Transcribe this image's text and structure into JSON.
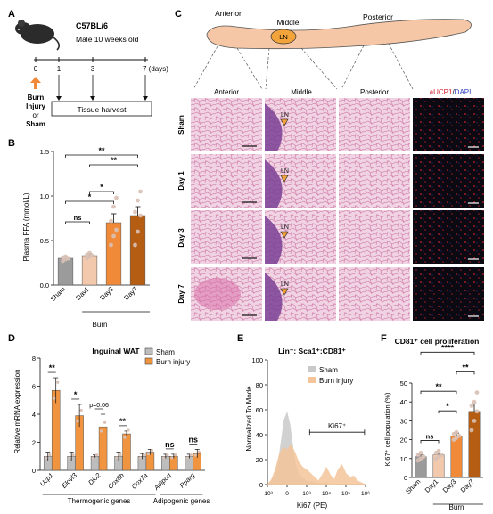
{
  "panel_letters": {
    "A": "A",
    "B": "B",
    "C": "C",
    "D": "D",
    "E": "E",
    "F": "F"
  },
  "panelA": {
    "strain": "C57BL/6",
    "subjects": "Male 10 weeks old",
    "ticks": [
      "0",
      "1",
      "3",
      "7 (days)"
    ],
    "event_lines": [
      "Burn",
      "Injury",
      "or",
      "Sham"
    ],
    "harvest": "Tissue harvest"
  },
  "panelC": {
    "regions": [
      "Anterior",
      "Middle",
      "Posterior"
    ],
    "ln": "LN",
    "cols": [
      "Anterior",
      "Middle",
      "Posterior"
    ],
    "rows": [
      "Sham",
      "Day 1",
      "Day 3",
      "Day 7"
    ],
    "if_label_1": "aUCP1",
    "if_label_sep": "/",
    "if_label_2": "DAPI",
    "colors": {
      "he_pink": "#e4a6c9",
      "he_purple": "#7a3f94",
      "if_bg": "#0b0a12",
      "if_red": "#c8202a"
    }
  },
  "panelB": {
    "chart_data": {
      "type": "bar",
      "ylabel": "Plasma FFA (mmol/L)",
      "ylim": [
        0,
        1.5
      ],
      "yticks": [
        "0.0",
        "0.5",
        "1.0",
        "1.5"
      ],
      "categories": [
        "Sham",
        "Day1",
        "Day3",
        "Day7"
      ],
      "group_label": "Burn",
      "values": [
        0.3,
        0.33,
        0.7,
        0.78
      ],
      "errors": [
        0.02,
        0.02,
        0.1,
        0.1
      ],
      "points": [
        [
          0.27,
          0.29,
          0.3,
          0.31,
          0.32,
          0.3
        ],
        [
          0.3,
          0.32,
          0.33,
          0.34,
          0.36
        ],
        [
          0.45,
          0.55,
          0.62,
          0.72,
          0.88,
          0.98
        ],
        [
          0.45,
          0.6,
          0.78,
          0.82,
          0.95,
          1.05
        ]
      ],
      "colors": [
        "#9b9b9b",
        "#f3c9ad",
        "#f08a38",
        "#b55d12"
      ],
      "significance": [
        {
          "from": 0,
          "to": 2,
          "label": "*"
        },
        {
          "from": 1,
          "to": 2,
          "label": "*"
        },
        {
          "from": 0,
          "to": 1,
          "label": "ns"
        },
        {
          "from": 1,
          "to": 3,
          "label": "**"
        },
        {
          "from": 0,
          "to": 3,
          "label": "**"
        }
      ]
    }
  },
  "panelD": {
    "chart_data": {
      "type": "bar",
      "title": "Inguinal WAT",
      "ylabel": "Relative mRNA expression",
      "ylim": [
        0,
        8
      ],
      "yticks": [
        "0",
        "2",
        "4",
        "6",
        "8"
      ],
      "categories": [
        "Ucp1",
        "Elovl3",
        "Dio2",
        "Cox8b",
        "Cox7a",
        "Adipoq",
        "Pparg"
      ],
      "series": [
        {
          "name": "Sham",
          "values": [
            1.0,
            1.0,
            1.0,
            1.0,
            1.0,
            1.0,
            1.0
          ],
          "errors": [
            0.3,
            0.3,
            0.1,
            0.3,
            0.2,
            0.15,
            0.15
          ],
          "color": "#bdbdbd"
        },
        {
          "name": "Burn injury",
          "values": [
            5.7,
            3.9,
            3.1,
            2.6,
            1.3,
            1.0,
            1.2
          ],
          "errors": [
            0.9,
            0.8,
            0.9,
            0.2,
            0.2,
            0.15,
            0.3
          ],
          "color": "#f0943f"
        }
      ],
      "significance": [
        "**",
        "*",
        "p=0.06",
        "**",
        "",
        "ns",
        "ns"
      ],
      "groups": [
        {
          "label": "Thermogenic genes",
          "from": 0,
          "to": 4
        },
        {
          "label": "Adipogenic genes",
          "from": 5,
          "to": 6
        }
      ]
    }
  },
  "panelE": {
    "chart_data": {
      "type": "area",
      "title": "Lin⁻: Sca1⁺:CD81⁺",
      "xlabel": "Ki67 (PE)",
      "ylabel": "Normalized To Mode",
      "ylim": [
        0,
        100
      ],
      "yticks": [
        "0",
        "20",
        "40",
        "60",
        "80",
        "100"
      ],
      "xticks": [
        "-10³",
        "0",
        "10³",
        "10⁴",
        "10⁵",
        "10⁶"
      ],
      "gate_label": "Ki67⁺",
      "series": [
        {
          "name": "Sham",
          "color": "#c9c9c9",
          "x": [
            0,
            0.2,
            0.4,
            0.55,
            0.7,
            0.85,
            1.0,
            1.15,
            1.3,
            1.45,
            1.6,
            1.8,
            2.0,
            2.3,
            2.6,
            3.0,
            3.5,
            4.0,
            5.0
          ],
          "y": [
            0,
            3,
            8,
            18,
            35,
            52,
            58,
            48,
            30,
            15,
            8,
            5,
            3,
            2,
            1,
            1,
            0,
            0,
            0
          ]
        },
        {
          "name": "Burn injury",
          "color": "#f4c59a",
          "x": [
            0,
            0.2,
            0.4,
            0.6,
            0.8,
            1.0,
            1.2,
            1.4,
            1.6,
            1.8,
            2.0,
            2.2,
            2.4,
            2.6,
            2.8,
            3.0,
            3.2,
            3.4,
            3.6,
            3.8,
            4.0,
            4.2,
            4.4,
            4.6,
            5.0
          ],
          "y": [
            0,
            4,
            12,
            24,
            30,
            28,
            32,
            26,
            18,
            14,
            12,
            9,
            6,
            3,
            8,
            14,
            8,
            4,
            12,
            16,
            9,
            6,
            7,
            3,
            0
          ]
        }
      ]
    }
  },
  "panelF": {
    "chart_data": {
      "type": "bar",
      "title": "CD81⁺ cell proliferation",
      "ylabel": "Ki67⁺ cell population (%)",
      "ylim": [
        0,
        50
      ],
      "yticks": [
        "0",
        "10",
        "20",
        "30",
        "40",
        "50"
      ],
      "categories": [
        "Sham",
        "Day1",
        "Day3",
        "Day7"
      ],
      "group_label": "Burn",
      "values": [
        11,
        12,
        22,
        35
      ],
      "errors": [
        1.0,
        1.0,
        1.5,
        4.0
      ],
      "points": [
        [
          9,
          10,
          11,
          12,
          13,
          11
        ],
        [
          10,
          11,
          12,
          13,
          14
        ],
        [
          20,
          21,
          22,
          23,
          24
        ],
        [
          25,
          30,
          35,
          38,
          40,
          45
        ]
      ],
      "colors": [
        "#9b9b9b",
        "#f3c9ad",
        "#f08a38",
        "#b55d12"
      ],
      "significance": [
        {
          "from": 0,
          "to": 1,
          "label": "ns"
        },
        {
          "from": 1,
          "to": 2,
          "label": "*"
        },
        {
          "from": 2,
          "to": 3,
          "label": "**"
        },
        {
          "from": 0,
          "to": 2,
          "label": "**"
        },
        {
          "from": 0,
          "to": 3,
          "label": "****"
        }
      ]
    }
  }
}
